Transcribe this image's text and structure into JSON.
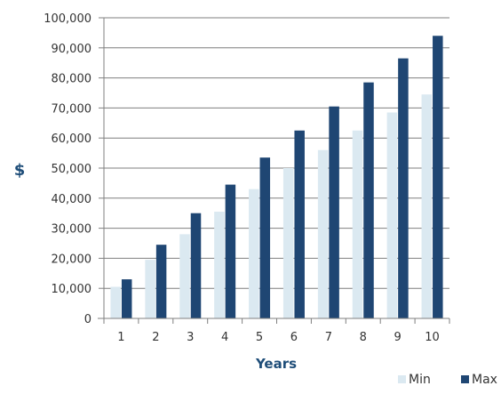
{
  "chart_data": {
    "type": "bar",
    "title": "",
    "xlabel": "Years",
    "ylabel": "$",
    "categories": [
      "1",
      "2",
      "3",
      "4",
      "5",
      "6",
      "7",
      "8",
      "9",
      "10"
    ],
    "series": [
      {
        "name": "Min",
        "color": "#dbe9f1",
        "values": [
          10500,
          19500,
          28000,
          35500,
          43000,
          50000,
          56000,
          62500,
          68500,
          74500
        ]
      },
      {
        "name": "Max",
        "color": "#1f4673",
        "values": [
          13000,
          24500,
          35000,
          44500,
          53500,
          62500,
          70500,
          78500,
          86500,
          94000
        ]
      }
    ],
    "ylim": [
      0,
      100000
    ],
    "yticks": [
      "0",
      "10,000",
      "20,000",
      "30,000",
      "40,000",
      "50,000",
      "60,000",
      "70,000",
      "80,000",
      "90,000",
      "100,000"
    ],
    "ytick_values": [
      0,
      10000,
      20000,
      30000,
      40000,
      50000,
      60000,
      70000,
      80000,
      90000,
      100000
    ],
    "grid": true,
    "legend_position": "bottom-right",
    "colors": {
      "grid": "#7f7f7f",
      "axis_title": "#1f4e79"
    }
  }
}
